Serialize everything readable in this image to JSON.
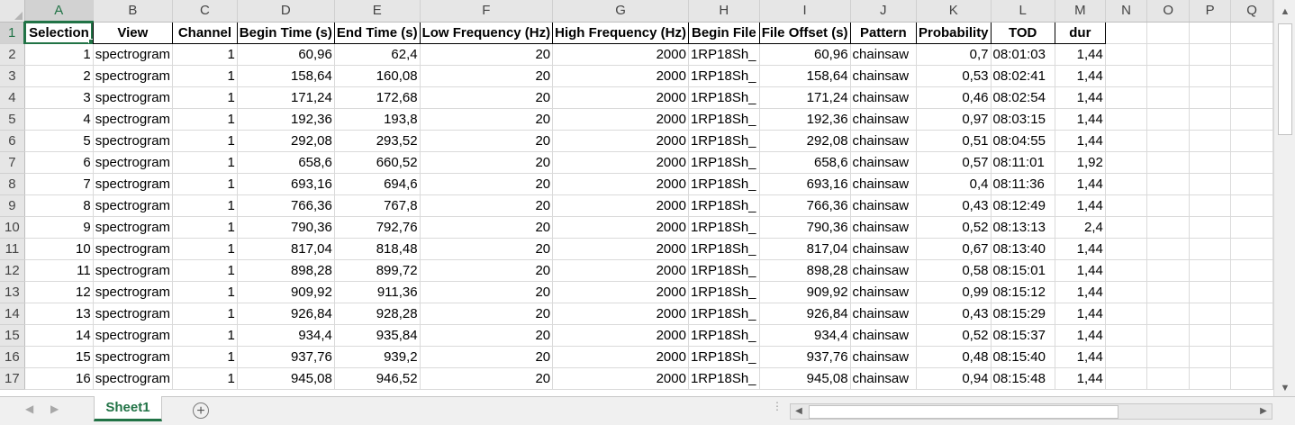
{
  "columns": [
    "A",
    "B",
    "C",
    "D",
    "E",
    "F",
    "G",
    "H",
    "I",
    "J",
    "K",
    "L",
    "M",
    "N",
    "O",
    "P",
    "Q"
  ],
  "header_row": [
    "Selection",
    "View",
    "Channel",
    "Begin Time (s)",
    "End Time (s)",
    "Low Frequency (Hz)",
    "High Frequency (Hz)",
    "Begin File",
    "File Offset (s)",
    "Pattern",
    "Probability",
    "TOD",
    "dur"
  ],
  "rows": [
    [
      "1",
      "spectrogram",
      "1",
      "60,96",
      "62,4",
      "20",
      "2000",
      "1RP18Sh_",
      "60,96",
      "chainsaw",
      "0,7",
      "08:01:03",
      "1,44"
    ],
    [
      "2",
      "spectrogram",
      "1",
      "158,64",
      "160,08",
      "20",
      "2000",
      "1RP18Sh_",
      "158,64",
      "chainsaw",
      "0,53",
      "08:02:41",
      "1,44"
    ],
    [
      "3",
      "spectrogram",
      "1",
      "171,24",
      "172,68",
      "20",
      "2000",
      "1RP18Sh_",
      "171,24",
      "chainsaw",
      "0,46",
      "08:02:54",
      "1,44"
    ],
    [
      "4",
      "spectrogram",
      "1",
      "192,36",
      "193,8",
      "20",
      "2000",
      "1RP18Sh_",
      "192,36",
      "chainsaw",
      "0,97",
      "08:03:15",
      "1,44"
    ],
    [
      "5",
      "spectrogram",
      "1",
      "292,08",
      "293,52",
      "20",
      "2000",
      "1RP18Sh_",
      "292,08",
      "chainsaw",
      "0,51",
      "08:04:55",
      "1,44"
    ],
    [
      "6",
      "spectrogram",
      "1",
      "658,6",
      "660,52",
      "20",
      "2000",
      "1RP18Sh_",
      "658,6",
      "chainsaw",
      "0,57",
      "08:11:01",
      "1,92"
    ],
    [
      "7",
      "spectrogram",
      "1",
      "693,16",
      "694,6",
      "20",
      "2000",
      "1RP18Sh_",
      "693,16",
      "chainsaw",
      "0,4",
      "08:11:36",
      "1,44"
    ],
    [
      "8",
      "spectrogram",
      "1",
      "766,36",
      "767,8",
      "20",
      "2000",
      "1RP18Sh_",
      "766,36",
      "chainsaw",
      "0,43",
      "08:12:49",
      "1,44"
    ],
    [
      "9",
      "spectrogram",
      "1",
      "790,36",
      "792,76",
      "20",
      "2000",
      "1RP18Sh_",
      "790,36",
      "chainsaw",
      "0,52",
      "08:13:13",
      "2,4"
    ],
    [
      "10",
      "spectrogram",
      "1",
      "817,04",
      "818,48",
      "20",
      "2000",
      "1RP18Sh_",
      "817,04",
      "chainsaw",
      "0,67",
      "08:13:40",
      "1,44"
    ],
    [
      "11",
      "spectrogram",
      "1",
      "898,28",
      "899,72",
      "20",
      "2000",
      "1RP18Sh_",
      "898,28",
      "chainsaw",
      "0,58",
      "08:15:01",
      "1,44"
    ],
    [
      "12",
      "spectrogram",
      "1",
      "909,92",
      "911,36",
      "20",
      "2000",
      "1RP18Sh_",
      "909,92",
      "chainsaw",
      "0,99",
      "08:15:12",
      "1,44"
    ],
    [
      "13",
      "spectrogram",
      "1",
      "926,84",
      "928,28",
      "20",
      "2000",
      "1RP18Sh_",
      "926,84",
      "chainsaw",
      "0,43",
      "08:15:29",
      "1,44"
    ],
    [
      "14",
      "spectrogram",
      "1",
      "934,4",
      "935,84",
      "20",
      "2000",
      "1RP18Sh_",
      "934,4",
      "chainsaw",
      "0,52",
      "08:15:37",
      "1,44"
    ],
    [
      "15",
      "spectrogram",
      "1",
      "937,76",
      "939,2",
      "20",
      "2000",
      "1RP18Sh_",
      "937,76",
      "chainsaw",
      "0,48",
      "08:15:40",
      "1,44"
    ],
    [
      "16",
      "spectrogram",
      "1",
      "945,08",
      "946,52",
      "20",
      "2000",
      "1RP18Sh_",
      "945,08",
      "chainsaw",
      "0,94",
      "08:15:48",
      "1,44"
    ]
  ],
  "sheet_tab": "Sheet1",
  "icons": {
    "add_sheet": "plus-circle-icon",
    "scroll_up": "triangle-up-icon",
    "scroll_down": "triangle-down-icon",
    "scroll_left": "triangle-left-icon",
    "scroll_right": "triangle-right-icon"
  },
  "accent_color": "#217346"
}
